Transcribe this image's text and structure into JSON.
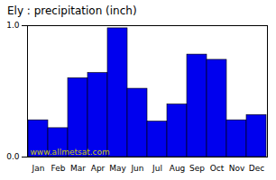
{
  "chart_data": {
    "type": "bar",
    "title": "Ely : precipitation (inch)",
    "categories": [
      "Jan",
      "Feb",
      "Mar",
      "Apr",
      "May",
      "Jun",
      "Jul",
      "Aug",
      "Sep",
      "Oct",
      "Nov",
      "Dec"
    ],
    "values": [
      0.28,
      0.22,
      0.6,
      0.64,
      0.98,
      0.52,
      0.27,
      0.4,
      0.78,
      0.74,
      0.28,
      0.32
    ],
    "color": "#0000EE",
    "ylim": [
      0,
      1.0
    ],
    "yticks": [
      0,
      1
    ],
    "annotations": [
      "www.allmetsat.com"
    ]
  }
}
